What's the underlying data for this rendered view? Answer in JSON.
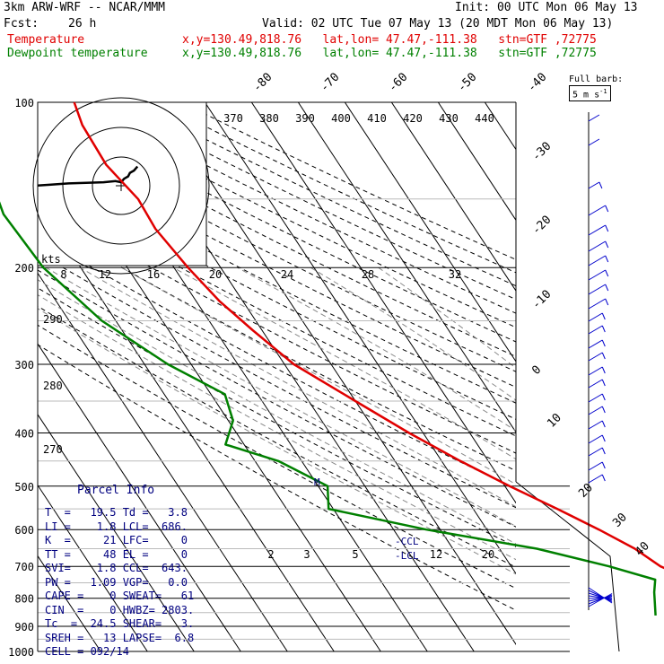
{
  "header": {
    "model": "3km ARW-WRF -- NCAR/MMM",
    "init": "Init: 00 UTC Mon 06 May 13",
    "fcst_label": "Fcst:",
    "fcst_value": "26 h",
    "valid": "Valid: 02 UTC Tue 07 May 13 (20 MDT Mon 06 May 13)",
    "temp_label": "Temperature",
    "temp_info": "x,y=130.49,818.76   lat,lon= 47.47,-111.38   stn=GTF ,72775",
    "dew_label": "Dewpoint temperature",
    "dew_info": "x,y=130.49,818.76   lat,lon= 47.47,-111.38   stn=GTF ,72775"
  },
  "colors": {
    "temperature": "#e00000",
    "dewpoint": "#008000",
    "parcel_text": "#000080",
    "wind_barbs": "#0000cc"
  },
  "barb_key": {
    "title": "Full barb:",
    "value": "5 m s",
    "exp": "-1"
  },
  "parcel_info": {
    "title": "Parcel Info",
    "rows": [
      "T  =   19.5 Td =   3.8",
      "LI =    1.8 LCL=  686.",
      "K  =     21 LFC=     0",
      "TT =     48 EL =     0",
      "SVI=    1.8 CCL=  643.",
      "PW =   1.09 VGP=   0.0",
      "CAPE =    0 SWEAT=   61",
      "CIN  =    0 HWBZ= 2803.",
      "Tc  =  24.5 SHEAR=   3.",
      "SREH =   13 LAPSE=  6.8",
      "CELL = 092/14"
    ]
  },
  "chart_data": {
    "type": "skew-T log-P sounding",
    "pressure_levels": [
      100,
      200,
      300,
      400,
      500,
      600,
      700,
      800,
      900,
      1000
    ],
    "pressure_labels": [
      "100",
      "200",
      "300",
      "400",
      "500",
      "600",
      "700",
      "800",
      "900",
      "1000"
    ],
    "isotherm_labels_top": [
      "-80",
      "-70",
      "-60",
      "-50",
      "-40"
    ],
    "isotherm_labels_right": [
      "-30",
      "-20",
      "-10",
      "0",
      "10",
      "20",
      "30",
      "40"
    ],
    "theta_labels": [
      "370",
      "380",
      "390",
      "400",
      "410",
      "420",
      "430",
      "440"
    ],
    "dry_adiabat_labels": [
      "290",
      "280",
      "270"
    ],
    "hodo_speed_labels": [
      "8",
      "12",
      "16",
      "20",
      "24",
      "28",
      "32"
    ],
    "hodo_unit": "kts",
    "mixing_ratio_labels": [
      "2",
      "3",
      "5",
      "12",
      "20"
    ],
    "level_labels": [
      "CCL",
      "LCL",
      "M"
    ],
    "series": [
      {
        "name": "Temperature",
        "points": [
          [
            100,
            -58
          ],
          [
            110,
            -59.5
          ],
          [
            130,
            -60
          ],
          [
            150,
            -58
          ],
          [
            170,
            -58.5
          ],
          [
            200,
            -57
          ],
          [
            230,
            -55
          ],
          [
            260,
            -52
          ],
          [
            300,
            -48
          ],
          [
            350,
            -40
          ],
          [
            400,
            -33
          ],
          [
            450,
            -26
          ],
          [
            500,
            -19
          ],
          [
            550,
            -12
          ],
          [
            600,
            -6
          ],
          [
            650,
            -1
          ],
          [
            700,
            2
          ],
          [
            750,
            8
          ],
          [
            800,
            14
          ],
          [
            850,
            20
          ],
          [
            880,
            24
          ]
        ]
      },
      {
        "name": "Dewpoint temperature",
        "points": [
          [
            100,
            -85
          ],
          [
            120,
            -86
          ],
          [
            140,
            -87
          ],
          [
            160,
            -89
          ],
          [
            200,
            -88
          ],
          [
            250,
            -83
          ],
          [
            300,
            -75
          ],
          [
            340,
            -67
          ],
          [
            380,
            -69
          ],
          [
            420,
            -74
          ],
          [
            450,
            -65
          ],
          [
            500,
            -58
          ],
          [
            550,
            -61
          ],
          [
            600,
            -43
          ],
          [
            650,
            -22
          ],
          [
            700,
            -9
          ],
          [
            740,
            -1
          ],
          [
            780,
            -3
          ],
          [
            860,
            -6
          ]
        ]
      }
    ],
    "hodograph": [
      [
        -15,
        0
      ],
      [
        -12,
        0.2
      ],
      [
        -9,
        0.4
      ],
      [
        -6,
        0.5
      ],
      [
        -3,
        0.6
      ],
      [
        -1,
        0.8
      ],
      [
        0,
        0.6
      ],
      [
        0.5,
        1.2
      ],
      [
        1.2,
        1.6
      ],
      [
        1.5,
        2.2
      ],
      [
        2.2,
        2.6
      ],
      [
        2.8,
        3.3
      ]
    ]
  }
}
